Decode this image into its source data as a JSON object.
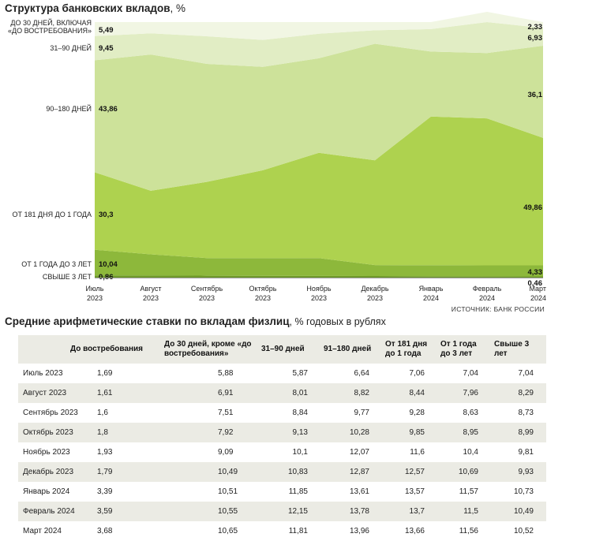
{
  "chart_data": {
    "type": "area",
    "stacked": true,
    "percent": true,
    "title": "Структура банковских вкладов",
    "title_unit": ", %",
    "source": "ИСТОЧНИК: БАНК РОССИИ",
    "categories": [
      "Июль 2023",
      "Август 2023",
      "Сентябрь 2023",
      "Октябрь 2023",
      "Ноябрь 2023",
      "Декабрь 2023",
      "Январь 2024",
      "Февраль 2024",
      "Март 2024"
    ],
    "category_lines": [
      [
        "Июль",
        "2023"
      ],
      [
        "Август",
        "2023"
      ],
      [
        "Сентябрь",
        "2023"
      ],
      [
        "Октябрь",
        "2023"
      ],
      [
        "Ноябрь",
        "2023"
      ],
      [
        "Декабрь",
        "2023"
      ],
      [
        "Январь",
        "2024"
      ],
      [
        "Февраль",
        "2024"
      ],
      [
        "Март",
        "2024"
      ]
    ],
    "ylim": [
      0,
      100
    ],
    "series": [
      {
        "name": "Свыше 3 лет",
        "label_lines": [
          "СВЫШЕ 3 ЛЕТ"
        ],
        "color": "#6f9a2a",
        "values": [
          0.86,
          0.8,
          0.75,
          0.7,
          0.65,
          0.6,
          0.55,
          0.5,
          0.46
        ],
        "first_label": "0,86",
        "last_label": "0,46"
      },
      {
        "name": "От 1 года до 3 лет",
        "label_lines": [
          "ОТ 1 ГОДА ДО 3 ЛЕТ"
        ],
        "color": "#8db83b",
        "values": [
          10.04,
          8.3,
          6.9,
          6.9,
          7.0,
          4.3,
          4.3,
          4.3,
          4.33
        ],
        "first_label": "10,04",
        "last_label": "4,33"
      },
      {
        "name": "От 181 дня до 1 года",
        "label_lines": [
          "ОТ 181 ДНЯ ДО 1 ГОДА"
        ],
        "color": "#aed24f",
        "values": [
          30.3,
          24.9,
          29.8,
          34.4,
          41.2,
          41.0,
          58.2,
          57.5,
          49.86
        ],
        "first_label": "30,3",
        "last_label": "49,86"
      },
      {
        "name": "90–180 дней",
        "label_lines": [
          "90–180 ДНЕЙ"
        ],
        "color": "#cde29a",
        "values": [
          43.86,
          53.3,
          46.2,
          40.5,
          37.0,
          45.6,
          25.4,
          25.6,
          36.1
        ],
        "first_label": "43,86",
        "last_label": "36,1"
      },
      {
        "name": "31–90 дней",
        "label_lines": [
          "31–90 ДНЕЙ"
        ],
        "color": "#e1edc4",
        "values": [
          9.45,
          8.3,
          10.8,
          10.5,
          9.6,
          5.3,
          8.8,
          12.1,
          6.93
        ],
        "first_label": "9,45",
        "last_label": "6,93"
      },
      {
        "name": "До 30 дней, включая «до востребования»",
        "label_lines": [
          "ДО 30 ДНЕЙ, ВКЛЮЧАЯ",
          "«ДО ВОСТРЕБОВАНИЯ»"
        ],
        "color": "#f1f6e3",
        "values": [
          5.49,
          4.4,
          5.55,
          7.0,
          4.55,
          3.2,
          2.75,
          4.0,
          2.33
        ],
        "first_label": "5,49",
        "last_label": "2,33"
      }
    ]
  },
  "rates_table": {
    "title": "Средние арифметические ставки по вкладам физлиц",
    "title_unit": ", % годовых в рублях",
    "columns": [
      "",
      "До востребования",
      "До 30 дней, кроме «до востребования»",
      "31–90 дней",
      "91–180 дней",
      "От 181 дня до 1 года",
      "От 1 года до 3 лет",
      "Свыше 3 лет"
    ],
    "rows": [
      [
        "Июль 2023",
        "1,69",
        "5,88",
        "5,87",
        "6,64",
        "7,06",
        "7,04",
        "7,04"
      ],
      [
        "Август 2023",
        "1,61",
        "6,91",
        "8,01",
        "8,82",
        "8,44",
        "7,96",
        "8,29"
      ],
      [
        "Сентябрь 2023",
        "1,6",
        "7,51",
        "8,84",
        "9,77",
        "9,28",
        "8,63",
        "8,73"
      ],
      [
        "Октябрь 2023",
        "1,8",
        "7,92",
        "9,13",
        "10,28",
        "9,85",
        "8,95",
        "8,99"
      ],
      [
        "Ноябрь 2023",
        "1,93",
        "9,09",
        "10,1",
        "12,07",
        "11,6",
        "10,4",
        "9,81"
      ],
      [
        "Декабрь 2023",
        "1,79",
        "10,49",
        "10,83",
        "12,87",
        "12,57",
        "10,69",
        "9,93"
      ],
      [
        "Январь 2024",
        "3,39",
        "10,51",
        "11,85",
        "13,61",
        "13,57",
        "11,57",
        "10,73"
      ],
      [
        "Февраль 2024",
        "3,59",
        "10,55",
        "12,15",
        "13,78",
        "13,7",
        "11,5",
        "10,49"
      ],
      [
        "Март 2024",
        "3,68",
        "10,65",
        "11,81",
        "13,96",
        "13,66",
        "11,56",
        "10,52"
      ]
    ]
  }
}
